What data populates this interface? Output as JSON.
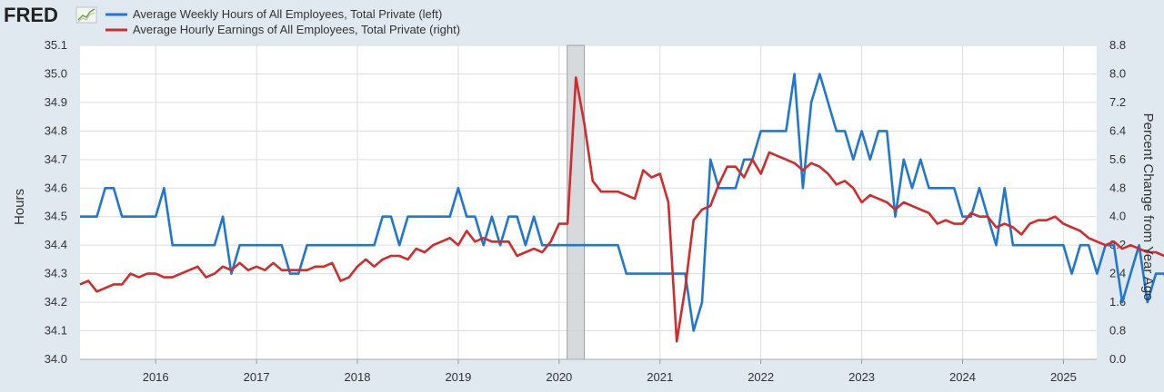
{
  "logo": {
    "text": "FRED"
  },
  "chart_data": {
    "type": "line",
    "title": "",
    "xlabel": "",
    "ylabel": "Hours",
    "ylabel_right": "Percent Change from Year Ago",
    "x_range": [
      2015.25,
      2025.33
    ],
    "ylim": [
      34.0,
      35.1
    ],
    "ylim_right": [
      0.0,
      8.8
    ],
    "yticks_left": [
      "35.1",
      "35.0",
      "34.9",
      "34.8",
      "34.7",
      "34.6",
      "34.5",
      "34.4",
      "34.3",
      "34.2",
      "34.1",
      "34.0"
    ],
    "yticks_right": [
      "8.8",
      "8.0",
      "7.2",
      "6.4",
      "5.6",
      "4.8",
      "4.0",
      "3.2",
      "2.4",
      "1.6",
      "0.8",
      "0.0"
    ],
    "xticks": [
      "2016",
      "2017",
      "2018",
      "2019",
      "2020",
      "2021",
      "2022",
      "2023",
      "2024",
      "2025"
    ],
    "recession": {
      "start": 2020.08,
      "end": 2020.25
    },
    "grid": true,
    "legend_position": "top-left",
    "colors": {
      "hours": "#1f77d4",
      "earnings": "#d22b2b",
      "recession": "#cfd3d6",
      "grid": "#dddddd"
    },
    "series": [
      {
        "name": "Average Weekly Hours of All Employees, Total Private (left)",
        "axis": "left",
        "start": 2015.25,
        "step": 0.08333333,
        "values": [
          34.5,
          34.5,
          34.5,
          34.6,
          34.6,
          34.5,
          34.5,
          34.5,
          34.5,
          34.5,
          34.6,
          34.4,
          34.4,
          34.4,
          34.4,
          34.4,
          34.4,
          34.5,
          34.3,
          34.4,
          34.4,
          34.4,
          34.4,
          34.4,
          34.4,
          34.3,
          34.3,
          34.4,
          34.4,
          34.4,
          34.4,
          34.4,
          34.4,
          34.4,
          34.4,
          34.4,
          34.5,
          34.5,
          34.4,
          34.5,
          34.5,
          34.5,
          34.5,
          34.5,
          34.5,
          34.6,
          34.5,
          34.5,
          34.4,
          34.5,
          34.4,
          34.5,
          34.5,
          34.4,
          34.5,
          34.4,
          34.4,
          34.4,
          34.4,
          34.4,
          34.4,
          34.4,
          34.4,
          34.4,
          34.4,
          34.3,
          34.3,
          34.3,
          34.3,
          34.3,
          34.3,
          34.3,
          34.3,
          34.1,
          34.2,
          34.7,
          34.6,
          34.6,
          34.6,
          34.7,
          34.7,
          34.8,
          34.8,
          34.8,
          34.8,
          35.0,
          34.6,
          34.9,
          35.0,
          34.9,
          34.8,
          34.8,
          34.7,
          34.8,
          34.7,
          34.8,
          34.8,
          34.5,
          34.7,
          34.6,
          34.7,
          34.6,
          34.6,
          34.6,
          34.6,
          34.5,
          34.5,
          34.6,
          34.5,
          34.4,
          34.6,
          34.4,
          34.4,
          34.4,
          34.4,
          34.4,
          34.4,
          34.4,
          34.3,
          34.4,
          34.4,
          34.3,
          34.4,
          34.4,
          34.2,
          34.3,
          34.4,
          34.2,
          34.3,
          34.3,
          34.2,
          34.3,
          34.2,
          34.3,
          34.3,
          34.2,
          34.1,
          34.2,
          34.3,
          34.3
        ]
      },
      {
        "name": "Average Hourly Earnings of All Employees, Total Private (right)",
        "axis": "right",
        "start": 2015.25,
        "step": 0.08333333,
        "values": [
          2.1,
          2.2,
          1.9,
          2.0,
          2.1,
          2.1,
          2.4,
          2.3,
          2.4,
          2.4,
          2.3,
          2.3,
          2.4,
          2.5,
          2.6,
          2.3,
          2.4,
          2.6,
          2.5,
          2.7,
          2.5,
          2.6,
          2.5,
          2.7,
          2.5,
          2.5,
          2.5,
          2.5,
          2.6,
          2.6,
          2.7,
          2.2,
          2.3,
          2.6,
          2.8,
          2.6,
          2.8,
          2.9,
          2.9,
          2.8,
          3.1,
          3.0,
          3.2,
          3.3,
          3.4,
          3.2,
          3.6,
          3.3,
          3.4,
          3.3,
          3.3,
          3.3,
          2.9,
          3.0,
          3.1,
          3.0,
          3.3,
          3.8,
          3.8,
          7.9,
          6.6,
          5.0,
          4.7,
          4.7,
          4.7,
          4.6,
          4.5,
          5.3,
          5.1,
          5.2,
          4.4,
          0.5,
          2.0,
          3.9,
          4.2,
          4.3,
          4.9,
          5.4,
          5.4,
          5.1,
          5.6,
          5.2,
          5.8,
          5.7,
          5.6,
          5.5,
          5.3,
          5.5,
          5.4,
          5.2,
          4.9,
          5.0,
          4.8,
          4.4,
          4.6,
          4.5,
          4.4,
          4.2,
          4.4,
          4.3,
          4.2,
          4.1,
          3.8,
          3.9,
          3.8,
          3.8,
          4.1,
          4.0,
          4.0,
          3.7,
          3.8,
          3.7,
          3.5,
          3.8,
          3.9,
          3.9,
          4.0,
          3.8,
          3.7,
          3.6,
          3.4,
          3.3,
          3.2,
          3.3,
          3.1,
          3.2,
          3.1,
          3.0,
          3.0,
          2.9,
          2.9
        ]
      }
    ]
  }
}
